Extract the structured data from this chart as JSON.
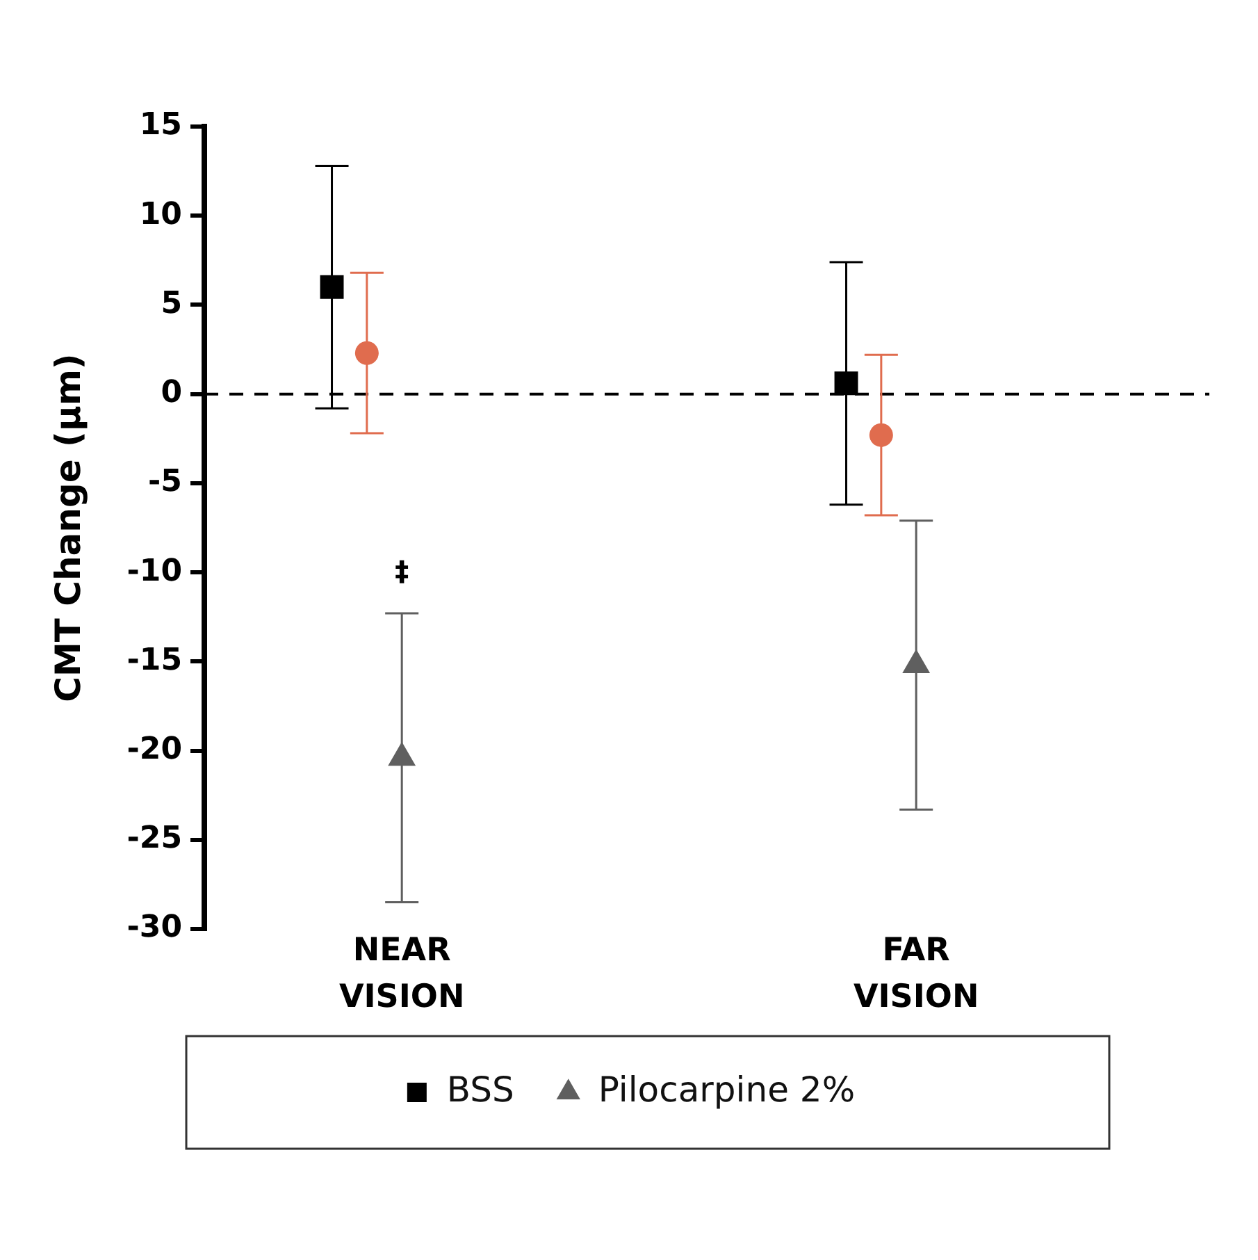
{
  "chart_data": {
    "type": "scatter",
    "ylabel": "CMT Change (µm)",
    "categories": [
      "NEAR VISION",
      "FAR VISION"
    ],
    "series": [
      {
        "name": "BSS",
        "color": "#000000",
        "marker": "square",
        "values": [
          6.0,
          0.6
        ],
        "errors": [
          6.8,
          6.8
        ]
      },
      {
        "color": "#e06c4e",
        "marker": "circle",
        "values": [
          2.3,
          -2.3
        ],
        "errors": [
          4.5,
          4.5
        ]
      },
      {
        "name": "Pilocarpine 2%",
        "color": "#5f5f5f",
        "marker": "triangle",
        "values": [
          -20.4,
          -15.2
        ],
        "errors": [
          8.1,
          8.1
        ]
      }
    ],
    "ylim": [
      -30,
      15
    ],
    "yticks": [
      -30,
      -25,
      -20,
      -15,
      -10,
      -5,
      0,
      5,
      10,
      15
    ],
    "grid": false,
    "legend": "bottom",
    "ref_lines": [
      {
        "axis": "y",
        "value": 0,
        "color": "#000000",
        "line_style": "dashed"
      }
    ],
    "annotations": [
      "‡"
    ]
  }
}
